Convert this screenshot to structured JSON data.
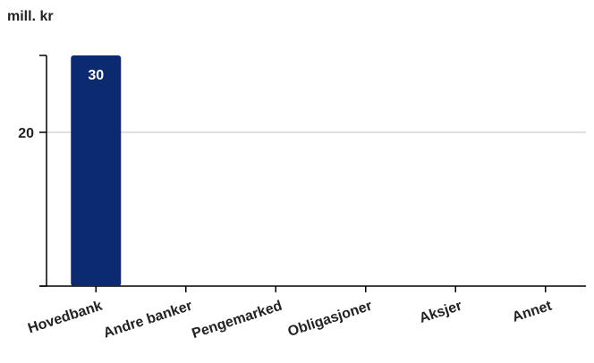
{
  "chart_data": {
    "type": "bar",
    "ylabel": "mill. kr",
    "categories": [
      "Hovedbank",
      "Andre banker",
      "Pengemarked",
      "Obligasjoner",
      "Aksjer",
      "Annet"
    ],
    "values": [
      30,
      null,
      null,
      null,
      null,
      null
    ],
    "value_labels": [
      "30",
      "",
      "",
      "",
      "",
      ""
    ],
    "y_ticks": [
      20
    ],
    "ylim": [
      0,
      30
    ],
    "grid": true,
    "legend": "none",
    "colors": {
      "bar": "#0b2a6f",
      "grid": "#bfbfbf",
      "axis": "#000000",
      "text": "#222222"
    }
  }
}
